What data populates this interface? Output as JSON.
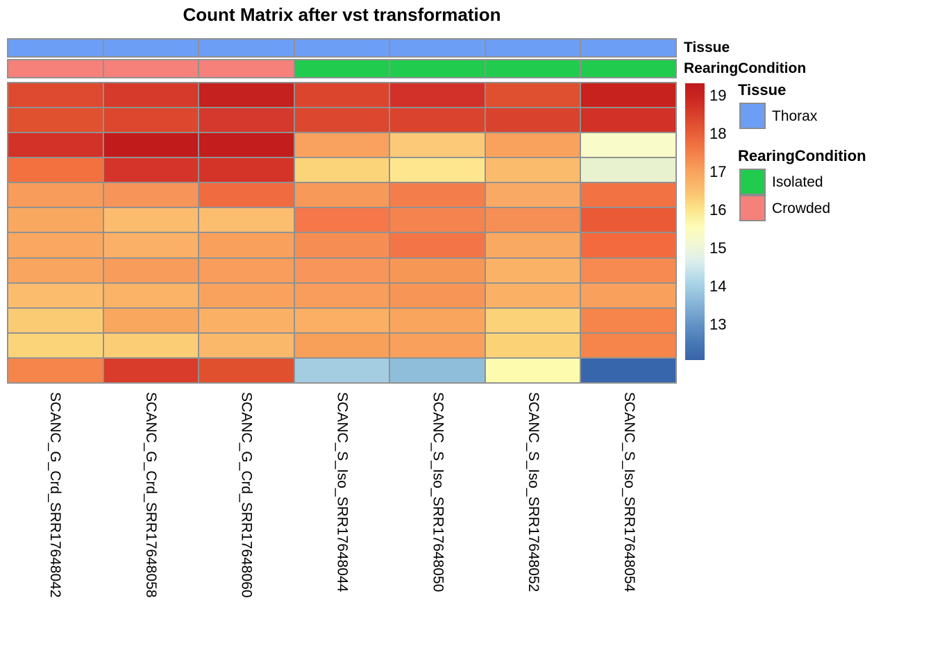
{
  "chart_data": {
    "type": "heatmap",
    "title": "Count Matrix after vst transformation",
    "columns": [
      "SCANC_G_Crd_SRR17648042",
      "SCANC_G_Crd_SRR17648058",
      "SCANC_G_Crd_SRR17648060",
      "SCANC_S_Iso_SRR17648044",
      "SCANC_S_Iso_SRR17648050",
      "SCANC_S_Iso_SRR17648052",
      "SCANC_S_Iso_SRR17648054"
    ],
    "row_count": 12,
    "rows_shown": false,
    "annotation_rows": [
      {
        "name": "Tissue",
        "values": [
          "Thorax",
          "Thorax",
          "Thorax",
          "Thorax",
          "Thorax",
          "Thorax",
          "Thorax"
        ],
        "colors": [
          "#6D9EF6",
          "#6D9EF6",
          "#6D9EF6",
          "#6D9EF6",
          "#6D9EF6",
          "#6D9EF6",
          "#6D9EF6"
        ]
      },
      {
        "name": "RearingCondition",
        "values": [
          "Crowded",
          "Crowded",
          "Crowded",
          "Isolated",
          "Isolated",
          "Isolated",
          "Isolated"
        ],
        "colors": [
          "#F5817A",
          "#F5817A",
          "#F5817A",
          "#21CB4D",
          "#21CB4D",
          "#21CB4D",
          "#21CB4D"
        ]
      }
    ],
    "cell_colors": [
      [
        "#DD4A2F",
        "#D63A2A",
        "#C5211F",
        "#DB452E",
        "#D2312A",
        "#DE502F",
        "#C8221E"
      ],
      [
        "#E0512F",
        "#DC472E",
        "#D5392D",
        "#DB472F",
        "#DA442E",
        "#D9422D",
        "#D13127"
      ],
      [
        "#D33228",
        "#C11B1C",
        "#C31D1E",
        "#F9A15F",
        "#FBC977",
        "#F9A25E",
        "#F9FCC8"
      ],
      [
        "#F2713F",
        "#D5342A",
        "#D43428",
        "#FBD47A",
        "#FDE68D",
        "#FABB6D",
        "#E8F2CE"
      ],
      [
        "#F89C5B",
        "#F6945A",
        "#F06B40",
        "#F79959",
        "#F47E4B",
        "#F9A964",
        "#F37244"
      ],
      [
        "#F9A860",
        "#FBBC6D",
        "#FBBE6F",
        "#F5774A",
        "#F58350",
        "#F68F55",
        "#EA5A36"
      ],
      [
        "#F9A761",
        "#FAB066",
        "#F9A05D",
        "#F68E53",
        "#F37547",
        "#F9A962",
        "#F26A3D"
      ],
      [
        "#F9A560",
        "#F89C5C",
        "#F89D5B",
        "#F7955A",
        "#F79756",
        "#FAB267",
        "#F68A50"
      ],
      [
        "#FBBC6E",
        "#FAB367",
        "#F9A25E",
        "#F89D5B",
        "#F79557",
        "#FAB165",
        "#F9A05C"
      ],
      [
        "#FBCB74",
        "#F9A75F",
        "#FAB166",
        "#FAAF65",
        "#F9A55E",
        "#FBD278",
        "#F5854A"
      ],
      [
        "#FBD47A",
        "#FBCE76",
        "#FAB86B",
        "#F89F5A",
        "#F8A05C",
        "#FBD376",
        "#F5854B"
      ],
      [
        "#F6854B",
        "#D93C2B",
        "#E0502F",
        "#A5CDE2",
        "#8FBEDA",
        "#FDFCAE",
        "#3866AC"
      ]
    ],
    "cell_values_est": [
      [
        18.4,
        18.5,
        18.9,
        18.4,
        18.6,
        18.3,
        18.9
      ],
      [
        18.3,
        18.4,
        18.5,
        18.4,
        18.4,
        18.4,
        18.6
      ],
      [
        18.6,
        19.0,
        19.0,
        17.4,
        16.9,
        17.4,
        15.7
      ],
      [
        17.9,
        18.5,
        18.5,
        16.8,
        16.6,
        17.1,
        15.4
      ],
      [
        17.5,
        17.6,
        18.0,
        17.5,
        17.8,
        17.3,
        17.9
      ],
      [
        17.3,
        17.0,
        17.0,
        17.9,
        17.8,
        17.7,
        18.2
      ],
      [
        17.3,
        17.2,
        17.4,
        17.7,
        17.9,
        17.3,
        18.0
      ],
      [
        17.4,
        17.5,
        17.5,
        17.6,
        17.6,
        17.2,
        17.7
      ],
      [
        17.0,
        17.2,
        17.4,
        17.5,
        17.6,
        17.2,
        17.4
      ],
      [
        16.9,
        17.3,
        17.2,
        17.2,
        17.4,
        16.8,
        17.8
      ],
      [
        16.8,
        16.9,
        17.1,
        17.4,
        17.4,
        16.8,
        17.8
      ],
      [
        17.8,
        18.5,
        18.3,
        14.1,
        13.8,
        16.1,
        12.5
      ]
    ],
    "colorbar": {
      "ticks": [
        "19",
        "18",
        "17",
        "16",
        "15",
        "14",
        "13"
      ],
      "value_range_est": [
        12.1,
        19.3
      ],
      "gradient_stops": [
        {
          "pos": 0,
          "color": "#BE1B1E"
        },
        {
          "pos": 5,
          "color": "#C92521"
        },
        {
          "pos": 13,
          "color": "#DC472E"
        },
        {
          "pos": 22,
          "color": "#F07040"
        },
        {
          "pos": 32,
          "color": "#F9A35E"
        },
        {
          "pos": 40,
          "color": "#FBC571"
        },
        {
          "pos": 46,
          "color": "#FCE78D"
        },
        {
          "pos": 52,
          "color": "#FDFCB9"
        },
        {
          "pos": 58,
          "color": "#F2F7D3"
        },
        {
          "pos": 64,
          "color": "#DEEFEC"
        },
        {
          "pos": 72,
          "color": "#ABD5E8"
        },
        {
          "pos": 80,
          "color": "#85B3D6"
        },
        {
          "pos": 88,
          "color": "#5F8FC3"
        },
        {
          "pos": 95,
          "color": "#4474B2"
        },
        {
          "pos": 100,
          "color": "#3A63A9"
        }
      ]
    },
    "legends": [
      {
        "title": "Tissue",
        "items": [
          {
            "label": "Thorax",
            "color": "#6D9EF6"
          }
        ]
      },
      {
        "title": "RearingCondition",
        "items": [
          {
            "label": "Isolated",
            "color": "#21CB4D"
          },
          {
            "label": "Crowded",
            "color": "#F5817A"
          }
        ]
      }
    ],
    "layout": {
      "border_color": "#919191",
      "legend_position": "right",
      "column_labels_rotated": true
    }
  }
}
